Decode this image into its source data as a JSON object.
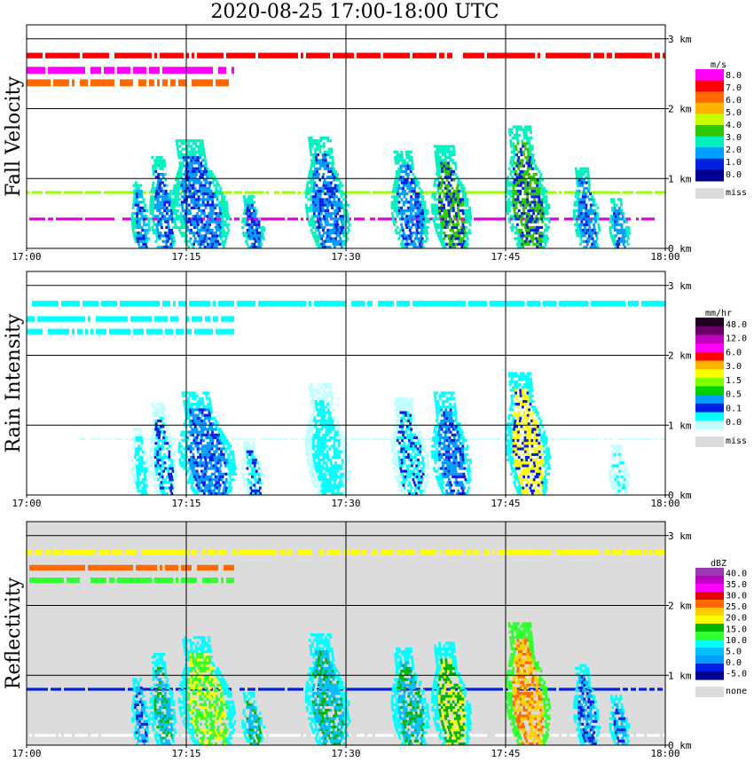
{
  "title": "2020-08-25   17:00-18:00 UTC",
  "chart_data": [
    {
      "type": "heatmap",
      "name": "fall-velocity",
      "ylabel": "Fall Velocity",
      "time_labels": [
        "17:00",
        "17:15",
        "17:30",
        "17:45",
        "18:00"
      ],
      "height_labels": [
        "3 km",
        "2 km",
        "1 km",
        "0 km"
      ],
      "xlim_minutes": [
        0,
        60
      ],
      "ylim_km": [
        0,
        3.2
      ],
      "background": "#ffffff",
      "legend_unit": "m/s",
      "legend_colors": [
        "#ff00ff",
        "#ff0000",
        "#ff6a00",
        "#ffb400",
        "#c8ff00",
        "#2ec800",
        "#00f0c0",
        "#009cff",
        "#0020e0",
        "#000090"
      ],
      "legend_labels": [
        "8.0",
        "7.0",
        "6.0",
        "5.0",
        "4.0",
        "3.0",
        "2.0",
        "1.0",
        "0.0"
      ],
      "missing_label": "miss",
      "layers": [
        {
          "t0": 0,
          "t1": 60,
          "h0": 2.72,
          "h1": 2.8,
          "color": "#ff0000"
        },
        {
          "t0": 0,
          "t1": 19.5,
          "h0": 2.5,
          "h1": 2.6,
          "color": "#ff00ff"
        },
        {
          "t0": 0,
          "t1": 19.5,
          "h0": 2.32,
          "h1": 2.42,
          "color": "#ff6a00"
        },
        {
          "t0": 0,
          "t1": 60,
          "h0": 0.78,
          "h1": 0.82,
          "color": "#9aff00"
        },
        {
          "t0": 0,
          "t1": 60,
          "h0": 0.4,
          "h1": 0.44,
          "color": "#e000e0"
        }
      ],
      "cells": [
        {
          "t": 10.8,
          "h": 0.95,
          "w": 0.8,
          "colors": [
            "#0020e0",
            "#00b4ff",
            "#00f0c0"
          ]
        },
        {
          "t": 13.0,
          "h": 1.3,
          "w": 1.2,
          "colors": [
            "#0020e0",
            "#009cff",
            "#00f0c0"
          ]
        },
        {
          "t": 16.8,
          "h": 1.55,
          "w": 2.6,
          "colors": [
            "#0020e0",
            "#009cff",
            "#00f0c0"
          ]
        },
        {
          "t": 21.4,
          "h": 0.75,
          "w": 1.0,
          "colors": [
            "#0020e0",
            "#009cff",
            "#00f0c0"
          ]
        },
        {
          "t": 28.6,
          "h": 1.6,
          "w": 2.0,
          "colors": [
            "#0020e0",
            "#009cff",
            "#00f0c0"
          ]
        },
        {
          "t": 36.3,
          "h": 1.4,
          "w": 1.7,
          "colors": [
            "#0020e0",
            "#009cff",
            "#00f0c0"
          ]
        },
        {
          "t": 40.2,
          "h": 1.45,
          "w": 1.8,
          "colors": [
            "#0020e0",
            "#2ec800",
            "#00f0c0"
          ]
        },
        {
          "t": 47.4,
          "h": 1.75,
          "w": 2.0,
          "colors": [
            "#0020e0",
            "#2ec800",
            "#00f0c0"
          ]
        },
        {
          "t": 52.8,
          "h": 1.15,
          "w": 1.2,
          "colors": [
            "#0020e0",
            "#009cff",
            "#00f0c0"
          ]
        },
        {
          "t": 55.8,
          "h": 0.7,
          "w": 0.9,
          "colors": [
            "#0020e0",
            "#009cff",
            "#00f0c0"
          ]
        }
      ]
    },
    {
      "type": "heatmap",
      "name": "rain-intensity",
      "ylabel": "Rain Intensity",
      "time_labels": [
        "17:00",
        "17:15",
        "17:30",
        "17:45",
        "18:00"
      ],
      "height_labels": [
        "3 km",
        "2 km",
        "1 km",
        "0 km"
      ],
      "xlim_minutes": [
        0,
        60
      ],
      "ylim_km": [
        0,
        3.2
      ],
      "background": "#ffffff",
      "legend_unit": "mm/hr",
      "legend_colors": [
        "#200020",
        "#6a006a",
        "#c000c0",
        "#ff00ff",
        "#ff0000",
        "#ffb400",
        "#ffff00",
        "#80ff00",
        "#00d000",
        "#009cff",
        "#0020e0",
        "#00ffff",
        "#c0ffff"
      ],
      "legend_labels": [
        "48.0",
        "12.0",
        "6.0",
        "3.0",
        "1.5",
        "0.5",
        "0.1",
        "0.0"
      ],
      "missing_label": "miss",
      "layers": [
        {
          "t0": 0,
          "t1": 60,
          "h0": 2.7,
          "h1": 2.78,
          "color": "#00ffff"
        },
        {
          "t0": 0,
          "t1": 19.5,
          "h0": 2.48,
          "h1": 2.56,
          "color": "#00ffff"
        },
        {
          "t0": 0,
          "t1": 19.5,
          "h0": 2.3,
          "h1": 2.38,
          "color": "#00ffff"
        },
        {
          "t0": 5,
          "t1": 60,
          "h0": 0.79,
          "h1": 0.81,
          "color": "#c0ffff"
        }
      ],
      "cells": [
        {
          "t": 10.8,
          "h": 0.95,
          "w": 0.8,
          "colors": [
            "#00ffff",
            "#00ffff",
            "#c0ffff"
          ]
        },
        {
          "t": 13.0,
          "h": 1.3,
          "w": 1.2,
          "colors": [
            "#0020e0",
            "#00ffff",
            "#c0ffff"
          ]
        },
        {
          "t": 17.4,
          "h": 1.45,
          "w": 2.6,
          "colors": [
            "#0020e0",
            "#009cff",
            "#00ffff"
          ]
        },
        {
          "t": 21.4,
          "h": 0.75,
          "w": 1.0,
          "colors": [
            "#0020e0",
            "#00ffff",
            "#c0ffff"
          ]
        },
        {
          "t": 28.6,
          "h": 1.6,
          "w": 2.0,
          "colors": [
            "#00ffff",
            "#00ffff",
            "#c0ffff"
          ]
        },
        {
          "t": 36.3,
          "h": 1.4,
          "w": 1.7,
          "colors": [
            "#0020e0",
            "#00ffff",
            "#c0ffff"
          ]
        },
        {
          "t": 40.2,
          "h": 1.45,
          "w": 1.8,
          "colors": [
            "#0020e0",
            "#009cff",
            "#00ffff"
          ]
        },
        {
          "t": 47.4,
          "h": 1.75,
          "w": 2.0,
          "colors": [
            "#0020e0",
            "#ffff00",
            "#00ffff"
          ]
        },
        {
          "t": 55.8,
          "h": 0.7,
          "w": 0.9,
          "colors": [
            "#00ffff",
            "#c0ffff",
            "#c0ffff"
          ]
        }
      ]
    },
    {
      "type": "heatmap",
      "name": "reflectivity",
      "ylabel": "Reflectivity",
      "time_labels": [
        "17:00",
        "17:15",
        "17:30",
        "17:45",
        "18:00"
      ],
      "height_labels": [
        "3 km",
        "2 km",
        "1 km",
        "0 km"
      ],
      "xlim_minutes": [
        0,
        60
      ],
      "ylim_km": [
        0,
        3.2
      ],
      "background": "#dcdcdc",
      "legend_unit": "dBZ",
      "legend_colors": [
        "#9a3ab0",
        "#c000c0",
        "#ff00ff",
        "#e00000",
        "#ff6a00",
        "#ffd000",
        "#ffff00",
        "#00b400",
        "#30ff30",
        "#00ffff",
        "#00c0ff",
        "#009cff",
        "#0020e0",
        "#000090"
      ],
      "legend_labels": [
        "40.0",
        "35.0",
        "30.0",
        "25.0",
        "20.0",
        "15.0",
        "10.0",
        "5.0",
        "0.0",
        "-5.0"
      ],
      "missing_label": "none",
      "layers": [
        {
          "t0": 0,
          "t1": 60,
          "h0": 2.72,
          "h1": 2.8,
          "color": "#ffff00"
        },
        {
          "t0": 0,
          "t1": 19.5,
          "h0": 2.5,
          "h1": 2.58,
          "color": "#ff6a00"
        },
        {
          "t0": 0,
          "t1": 19.5,
          "h0": 2.32,
          "h1": 2.4,
          "color": "#30ff30"
        },
        {
          "t0": 0,
          "t1": 60,
          "h0": 0.78,
          "h1": 0.82,
          "color": "#0020e0"
        },
        {
          "t0": 0,
          "t1": 60,
          "h0": 0.12,
          "h1": 0.16,
          "color": "#ffffff"
        }
      ],
      "cells": [
        {
          "t": 10.8,
          "h": 0.95,
          "w": 0.8,
          "colors": [
            "#0020e0",
            "#00c0ff",
            "#00ffff"
          ]
        },
        {
          "t": 13.0,
          "h": 1.3,
          "w": 1.2,
          "colors": [
            "#00b400",
            "#00c0ff",
            "#00ffff"
          ]
        },
        {
          "t": 17.4,
          "h": 1.55,
          "w": 2.6,
          "colors": [
            "#ffff00",
            "#30ff30",
            "#00ffff"
          ]
        },
        {
          "t": 21.4,
          "h": 0.75,
          "w": 1.0,
          "colors": [
            "#00b400",
            "#00c0ff",
            "#00ffff"
          ]
        },
        {
          "t": 28.6,
          "h": 1.6,
          "w": 2.0,
          "colors": [
            "#00b400",
            "#00c0ff",
            "#00ffff"
          ]
        },
        {
          "t": 36.3,
          "h": 1.4,
          "w": 1.7,
          "colors": [
            "#00b400",
            "#00c0ff",
            "#00ffff"
          ]
        },
        {
          "t": 40.2,
          "h": 1.45,
          "w": 1.8,
          "colors": [
            "#ffff00",
            "#00b400",
            "#00ffff"
          ]
        },
        {
          "t": 47.4,
          "h": 1.75,
          "w": 2.0,
          "colors": [
            "#ff6a00",
            "#ffd000",
            "#30ff30"
          ]
        },
        {
          "t": 52.8,
          "h": 1.15,
          "w": 1.2,
          "colors": [
            "#0020e0",
            "#00c0ff",
            "#00ffff"
          ]
        },
        {
          "t": 55.8,
          "h": 0.7,
          "w": 0.9,
          "colors": [
            "#0020e0",
            "#00c0ff",
            "#00ffff"
          ]
        }
      ]
    }
  ]
}
